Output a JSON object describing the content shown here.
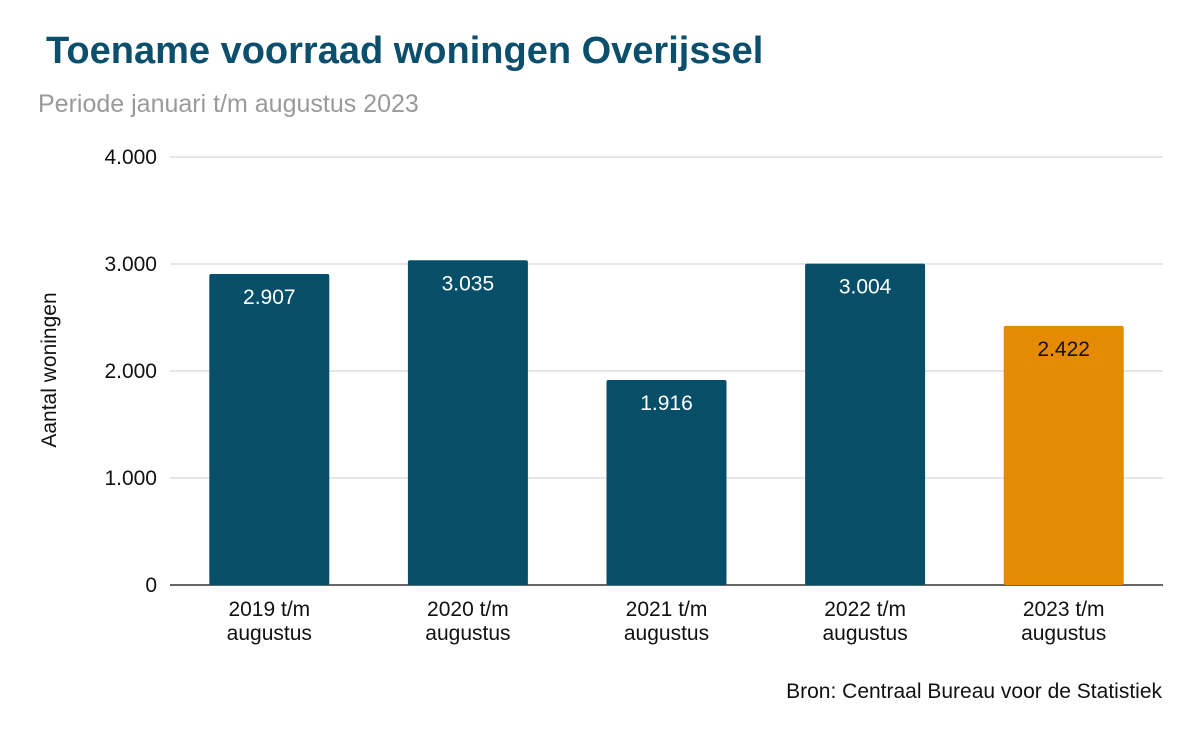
{
  "chart_data": {
    "type": "bar",
    "title": "Toename voorraad woningen Overijssel",
    "subtitle": "Periode januari t/m augustus 2023",
    "ylabel": "Aantal woningen",
    "xlabel": "",
    "ylim": [
      0,
      4000
    ],
    "yticks": [
      0,
      1000,
      2000,
      3000,
      4000
    ],
    "ytick_labels": [
      "0",
      "1.000",
      "2.000",
      "3.000",
      "4.000"
    ],
    "categories": [
      [
        "2019 t/m",
        "augustus"
      ],
      [
        "2020 t/m",
        "augustus"
      ],
      [
        "2021 t/m",
        "augustus"
      ],
      [
        "2022 t/m",
        "augustus"
      ],
      [
        "2023 t/m",
        "augustus"
      ]
    ],
    "values": [
      2907,
      3035,
      1916,
      3004,
      2422
    ],
    "data_labels": [
      "2.907",
      "3.035",
      "1.916",
      "3.004",
      "2.422"
    ],
    "colors": [
      "#074f69",
      "#074f69",
      "#074f69",
      "#074f69",
      "#e48a03"
    ],
    "label_colors": [
      "#ffffff",
      "#ffffff",
      "#ffffff",
      "#ffffff",
      "#111111"
    ],
    "grid": true,
    "legend": "none",
    "source": "Bron: Centraal Bureau voor de Statistiek"
  }
}
